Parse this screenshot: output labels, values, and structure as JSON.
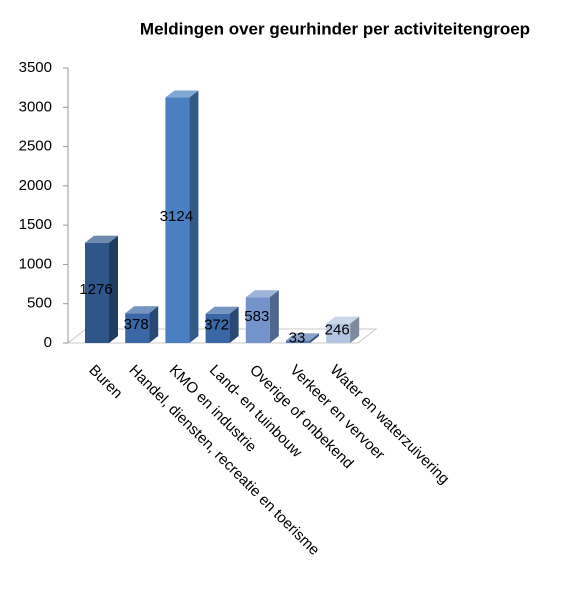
{
  "chart_data": {
    "type": "bar3d",
    "title": "Meldingen over geurhinder per activiteitengroep",
    "categories": [
      "Buren",
      "Handel, diensten, recreatie en toerisme",
      "KMO en industrie",
      "Land- en tuinbouw",
      "Overige of onbekend",
      "Verkeer en vervoer",
      "Water en waterzuivering"
    ],
    "values": [
      1276,
      378,
      3124,
      372,
      583,
      33,
      246
    ],
    "colors": [
      "#2f5689",
      "#3b67a6",
      "#4a80c2",
      "#3b67a6",
      "#7493cb",
      "#5a7ab3",
      "#b3c4e0"
    ],
    "ylim": [
      0,
      3500
    ],
    "yticks": [
      0,
      500,
      1000,
      1500,
      2000,
      2500,
      3000,
      3500
    ]
  }
}
